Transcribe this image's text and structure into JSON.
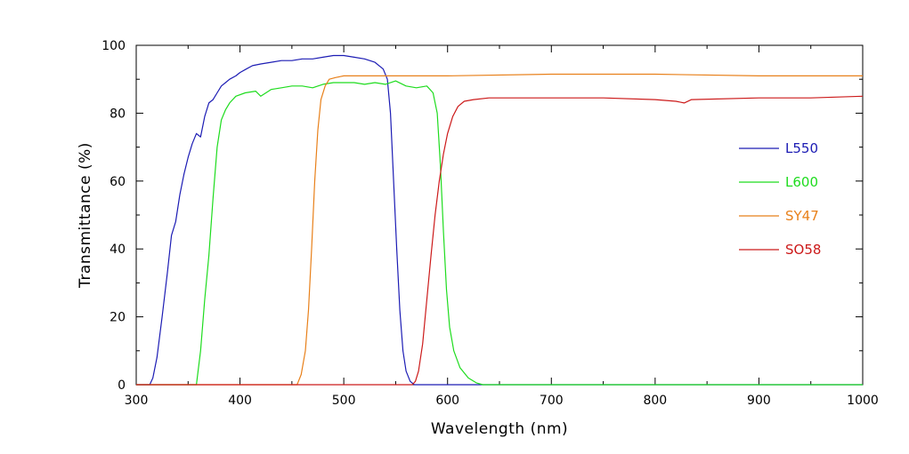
{
  "chart_data": {
    "type": "line",
    "title": "",
    "xlabel": "Wavelength (nm)",
    "ylabel": "Transmittance (%)",
    "xlim": [
      300,
      1000
    ],
    "ylim": [
      0,
      100
    ],
    "xticks": [
      300,
      400,
      500,
      600,
      700,
      800,
      900,
      1000
    ],
    "yticks": [
      0,
      20,
      40,
      60,
      80,
      100
    ],
    "grid": false,
    "legend_position": "right",
    "series": [
      {
        "name": "L550",
        "color": "#1c1cb4",
        "points": [
          [
            300,
            0
          ],
          [
            313,
            0
          ],
          [
            316,
            2
          ],
          [
            320,
            8
          ],
          [
            325,
            20
          ],
          [
            330,
            33
          ],
          [
            334,
            44
          ],
          [
            338,
            48
          ],
          [
            342,
            56
          ],
          [
            346,
            62
          ],
          [
            350,
            67
          ],
          [
            354,
            71
          ],
          [
            358,
            74
          ],
          [
            362,
            73
          ],
          [
            366,
            79
          ],
          [
            370,
            83
          ],
          [
            374,
            84
          ],
          [
            378,
            86
          ],
          [
            382,
            88
          ],
          [
            386,
            89
          ],
          [
            390,
            90
          ],
          [
            396,
            91
          ],
          [
            400,
            92
          ],
          [
            406,
            93
          ],
          [
            412,
            94
          ],
          [
            420,
            94.5
          ],
          [
            430,
            95
          ],
          [
            440,
            95.5
          ],
          [
            450,
            95.5
          ],
          [
            460,
            96
          ],
          [
            470,
            96
          ],
          [
            480,
            96.5
          ],
          [
            490,
            97
          ],
          [
            500,
            97
          ],
          [
            510,
            96.5
          ],
          [
            520,
            96
          ],
          [
            530,
            95
          ],
          [
            538,
            93
          ],
          [
            542,
            90
          ],
          [
            545,
            80
          ],
          [
            548,
            60
          ],
          [
            551,
            40
          ],
          [
            554,
            22
          ],
          [
            557,
            10
          ],
          [
            560,
            4
          ],
          [
            564,
            1
          ],
          [
            568,
            0
          ],
          [
            1000,
            0
          ]
        ]
      },
      {
        "name": "L600",
        "color": "#1edc1e",
        "points": [
          [
            300,
            0
          ],
          [
            358,
            0
          ],
          [
            362,
            10
          ],
          [
            366,
            25
          ],
          [
            370,
            38
          ],
          [
            374,
            55
          ],
          [
            378,
            70
          ],
          [
            382,
            78
          ],
          [
            386,
            81
          ],
          [
            390,
            83
          ],
          [
            396,
            85
          ],
          [
            405,
            86
          ],
          [
            415,
            86.5
          ],
          [
            420,
            85
          ],
          [
            425,
            86
          ],
          [
            430,
            87
          ],
          [
            440,
            87.5
          ],
          [
            450,
            88
          ],
          [
            460,
            88
          ],
          [
            470,
            87.5
          ],
          [
            480,
            88.5
          ],
          [
            490,
            89
          ],
          [
            500,
            89
          ],
          [
            510,
            89
          ],
          [
            520,
            88.5
          ],
          [
            530,
            89
          ],
          [
            540,
            88.5
          ],
          [
            550,
            89.5
          ],
          [
            560,
            88
          ],
          [
            570,
            87.5
          ],
          [
            580,
            88
          ],
          [
            586,
            86
          ],
          [
            590,
            80
          ],
          [
            593,
            65
          ],
          [
            596,
            45
          ],
          [
            599,
            28
          ],
          [
            602,
            17
          ],
          [
            606,
            10
          ],
          [
            612,
            5
          ],
          [
            620,
            2
          ],
          [
            628,
            0.5
          ],
          [
            634,
            0
          ],
          [
            1000,
            0
          ]
        ]
      },
      {
        "name": "SY47",
        "color": "#e8801a",
        "points": [
          [
            300,
            0
          ],
          [
            455,
            0
          ],
          [
            459,
            3
          ],
          [
            463,
            10
          ],
          [
            466,
            22
          ],
          [
            469,
            40
          ],
          [
            472,
            60
          ],
          [
            475,
            75
          ],
          [
            478,
            84
          ],
          [
            482,
            88
          ],
          [
            486,
            90
          ],
          [
            492,
            90.5
          ],
          [
            500,
            91
          ],
          [
            550,
            91
          ],
          [
            600,
            91
          ],
          [
            700,
            91.5
          ],
          [
            800,
            91.5
          ],
          [
            900,
            91
          ],
          [
            1000,
            91
          ]
        ]
      },
      {
        "name": "SO58",
        "color": "#cc1a1a",
        "points": [
          [
            300,
            0
          ],
          [
            566,
            0
          ],
          [
            569,
            1
          ],
          [
            572,
            4
          ],
          [
            576,
            12
          ],
          [
            580,
            25
          ],
          [
            584,
            38
          ],
          [
            588,
            50
          ],
          [
            592,
            60
          ],
          [
            596,
            68
          ],
          [
            600,
            74
          ],
          [
            605,
            79
          ],
          [
            610,
            82
          ],
          [
            616,
            83.5
          ],
          [
            625,
            84
          ],
          [
            640,
            84.5
          ],
          [
            700,
            84.5
          ],
          [
            750,
            84.5
          ],
          [
            800,
            84
          ],
          [
            820,
            83.5
          ],
          [
            828,
            83
          ],
          [
            835,
            84
          ],
          [
            900,
            84.5
          ],
          [
            950,
            84.5
          ],
          [
            1000,
            85
          ]
        ]
      }
    ]
  }
}
